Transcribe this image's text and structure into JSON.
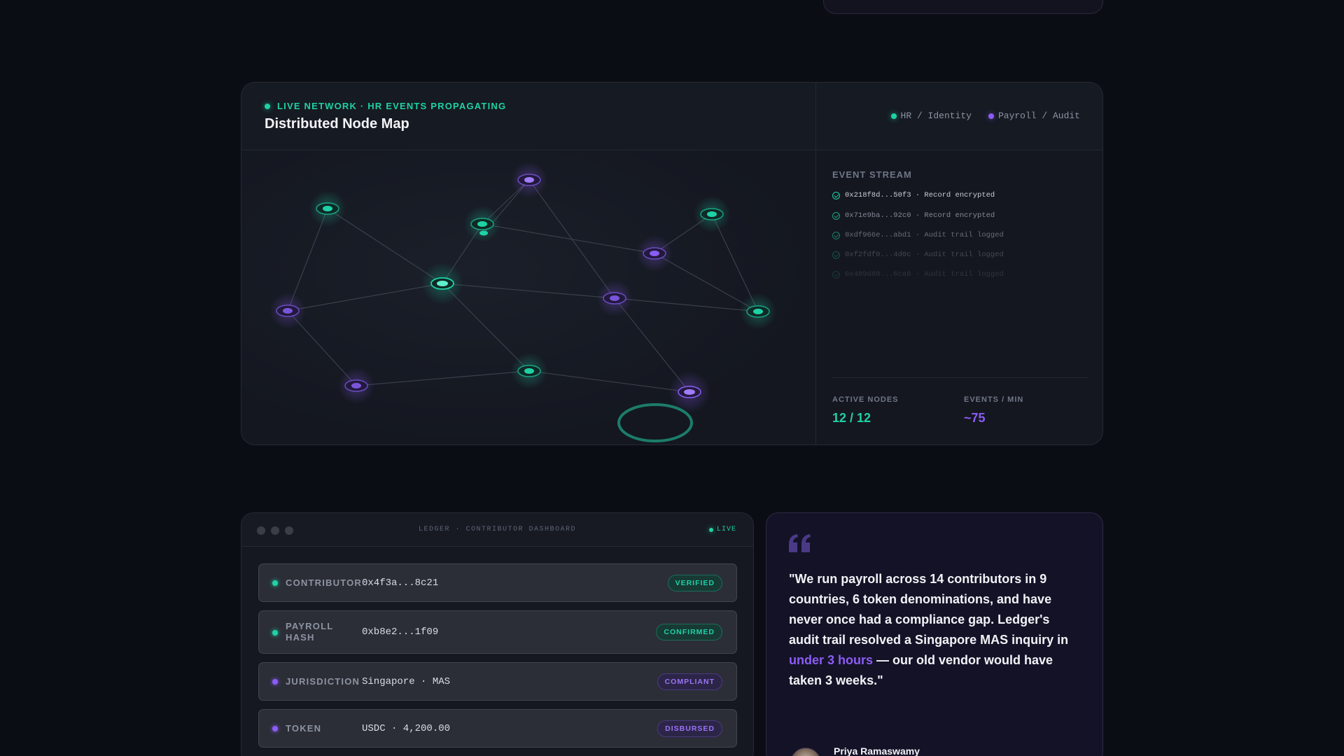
{
  "network": {
    "live_label": "LIVE NETWORK · HR EVENTS PROPAGATING",
    "title": "Distributed Node Map",
    "legend": [
      {
        "label": "HR / Identity",
        "color": "#1fd1a5"
      },
      {
        "label": "Payroll / Audit",
        "color": "#8b5cf6"
      }
    ],
    "event_stream": {
      "title": "EVENT STREAM",
      "events": [
        {
          "text": "0x218f8d...50f3 · Record encrypted",
          "opacity": 1
        },
        {
          "text": "0x71e9ba...92c0 · Record encrypted",
          "opacity": 0.75
        },
        {
          "text": "0xdf966e...abd1 · Audit trail logged",
          "opacity": 0.55
        },
        {
          "text": "0xf2fdf0...4d0c · Audit trail logged",
          "opacity": 0.3
        },
        {
          "text": "0x489d89...6ca8 · Audit trail logged",
          "opacity": 0.18
        }
      ]
    },
    "stats": [
      {
        "label": "ACTIVE NODES",
        "value": "12 / 12",
        "color": "#1fd1a5"
      },
      {
        "label": "EVENTS / MIN",
        "value": "~75",
        "color": "#8b5cf6"
      }
    ]
  },
  "ledger": {
    "title": "LEDGER · CONTRIBUTOR DASHBOARD",
    "live": "LIVE",
    "rows": [
      {
        "label": "CONTRIBUTOR",
        "value": "0x4f3a...8c21",
        "badge": "VERIFIED",
        "tone": "teal"
      },
      {
        "label": "PAYROLL HASH",
        "value": "0xb8e2...1f09",
        "badge": "CONFIRMED",
        "tone": "teal"
      },
      {
        "label": "JURISDICTION",
        "value": "Singapore · MAS",
        "badge": "COMPLIANT",
        "tone": "purple"
      },
      {
        "label": "TOKEN",
        "value": "USDC · 4,200.00",
        "badge": "DISBURSED",
        "tone": "purple"
      }
    ]
  },
  "testimonial": {
    "quote_before": "\"We run payroll across 14 contributors in 9 countries, 6 token denominations, and have never once had a compliance gap. Ledger's audit trail resolved a Singapore MAS inquiry in ",
    "quote_highlight": "under 3 hours",
    "quote_after": " — our old vendor would have taken 3 weeks.\"",
    "author": "Priya Ramaswamy",
    "quote_icon": "quote-mark-icon"
  },
  "colors": {
    "teal": "#1fd1a5",
    "purple": "#8b5cf6",
    "background": "#0b0d14"
  }
}
